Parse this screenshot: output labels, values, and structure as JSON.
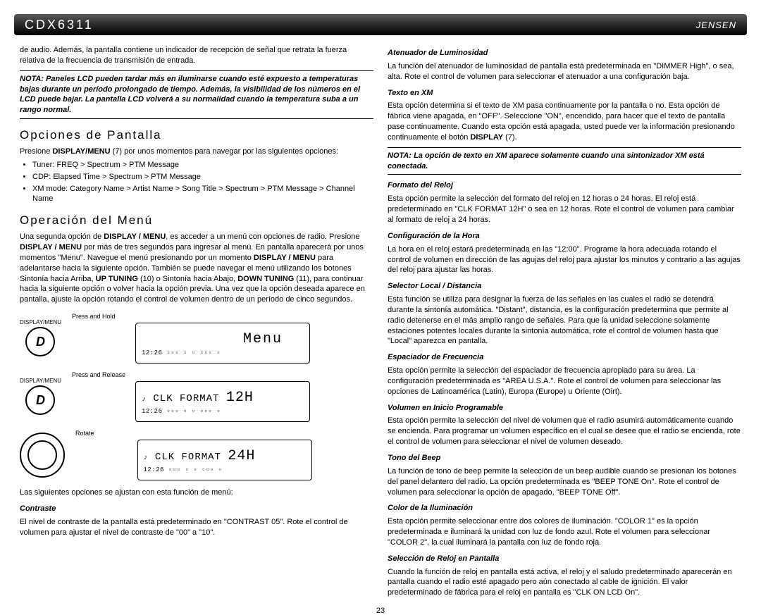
{
  "header": {
    "model": "CDX6311",
    "brand": "JENSEN"
  },
  "left": {
    "intro": "de audio. Además, la pantalla contiene un indicador de recepción de señal que retrata la fuerza relativa de la frecuencia de transmisión de entrada.",
    "note1": "NOTA: Paneles LCD pueden tardar más en iluminarse cuando esté expuesto a temperaturas bajas durante un período prolongado de tiempo. Además, la visibilidad de los números en el LCD puede bajar. La pantalla LCD volverá a su normalidad cuando la temperatura suba a un rango normal.",
    "opciones_title": "Opciones de Pantalla",
    "opciones_text": "Presione DISPLAY/MENU (7) por unos momentos para navegar por las siguientes opciones:",
    "bullets": [
      "Tuner: FREQ > Spectrum > PTM Message",
      "CDP: Elapsed Time > Spectrum > PTM Message",
      "XM mode: Category Name > Artist Name > Song Title > Spectrum > PTM Message > Channel Name"
    ],
    "operacion_title": "Operación del Menú",
    "operacion_text": "Una segunda opción de DISPLAY / MENU, es acceder a un menú con opciones de radio. Presione DISPLAY / MENU por más de tres segundos para ingresar al menú. En pantalla aparecerá por unos momentos \"Menu\". Navegue el menú presionando por un momento DISPLAY / MENU para adelantarse hacia la siguiente opción. También se puede navegar el menú utilizando los botones Sintonía hacia Arriba, UP TUNING (10) o Sintonía hacia Abajo, DOWN TUNING (11), para continuar hacia la siguiente opción o volver hacia la opción previa. Una vez que la opción deseada aparece en pantalla, ajuste la opción rotando el control de volumen dentro de un período de cinco segundos.",
    "diag": {
      "label_dm": "DISPLAY/MENU",
      "action1": "Press and Hold",
      "action2": "Press and Release",
      "action3": "Rotate",
      "screen1": "Menu",
      "screen2a": "CLK FORMAT",
      "screen2b": "12H",
      "screen3a": "CLK FORMAT",
      "screen3b": "24H",
      "clock": "12:26",
      "icons_row": "▫ ▫▫ ▫ ▫ ▫▫▫ ▫"
    },
    "posttext": "Las siguientes opciones se ajustan con esta función de menú:",
    "contraste_title": "Contraste",
    "contraste_text": "El nivel de contraste de la pantalla está predeterminado en \"CONTRAST 05\". Rote el control de volumen para ajustar el nivel de contraste de \"00\" a \"10\"."
  },
  "right": {
    "atenuador_title": "Atenuador de Luminosidad",
    "atenuador_text": "La función del atenuador de luminosidad de pantalla está predeterminada en \"DIMMER High\", o sea, alta. Rote el control de volumen para seleccionar el atenuador a una configuración baja.",
    "texto_xm_title": "Texto en XM",
    "texto_xm_text": "Esta opción determina si el texto de XM pasa continuamente por la pantalla o no. Esta opción de fábrica viene apagada, en \"OFF\". Seleccione \"ON\", encendido, para hacer que el texto de pantalla pase continuamente. Cuando esta opción está apagada, usted puede ver la información presionando continuamente el botón DISPLAY (7).",
    "note2": "NOTA: La opción de texto en XM aparece solamente cuando una sintonizador XM está conectada.",
    "formato_title": "Formato del Reloj",
    "formato_text": "Esta opción permite la selección del formato del reloj en 12 horas o 24 horas. El reloj está predeterminado en \"CLK FORMAT 12H\" o sea en 12 horas. Rote el control de volumen para cambiar al formato de reloj a 24 horas.",
    "config_hora_title": "Configuración de la Hora",
    "config_hora_text": "La hora en el reloj estará predeterminada en las \"12:00\". Programe la hora adecuada rotando el control de volumen en dirección de las agujas del reloj para ajustar los minutos y contrario a las agujas del reloj para ajustar las horas.",
    "selector_title": "Selector Local / Distancia",
    "selector_text": "Esta función se utiliza para designar la fuerza de las señales en las cuales el radio se detendrá durante la sintonía automática. \"Distant\", distancia, es la configuración predetermina que permite al radio detenerse en el más amplio rango de señales. Para que la unidad seleccione solamente estaciones potentes locales durante la sintonía automática, rote el control de volumen hasta que \"Local\" aparezca en pantalla.",
    "espaciador_title": "Espaciador de Frecuencia",
    "espaciador_text": "Esta opción permite la selección del espaciador de frecuencia apropiado para su área. La configuración predeterminada es \"AREA U.S.A.\". Rote el control de volumen para seleccionar las opciones de Latinoamérica (Latin), Europa (Europe) u Oriente (Oirt).",
    "volumen_title": "Volumen en Inicio Programable",
    "volumen_text": "Esta opción permite la selección del nivel de volumen que el radio asumirá automáticamente cuando se encienda. Para programar un volumen específico en el cual se desee que el radio se encienda, rote el control de volumen para seleccionar el nivel de volumen deseado.",
    "tono_title": "Tono del Beep",
    "tono_text": "La función de tono de beep permite la selección de un beep audible cuando se presionan los botones del panel delantero del radio. La opción predeterminada es \"BEEP TONE On\". Rote el control de volumen para seleccionar la opción de apagado, \"BEEP TONE Off\".",
    "color_title": "Color de la Iluminación",
    "color_text": "Esta opción permite seleccionar entre dos colores de iluminación. \"COLOR 1\" es la opción predeterminada e iluminará la unidad con luz de fondo azul. Rote el volumen para seleccionar \"COLOR 2\", la cual iluminará la pantalla con luz de fondo roja.",
    "seleccion_title": "Selección de Reloj en Pantalla",
    "seleccion_text": "Cuando la función de reloj en pantalla está activa, el reloj y el saludo predeterminado aparecerán en pantalla cuando el radio esté apagado pero aún conectado al cable de ignición. El valor predeterminado de fábrica para el reloj en pantalla es \"CLK ON LCD On\"."
  },
  "pagenum": "23"
}
